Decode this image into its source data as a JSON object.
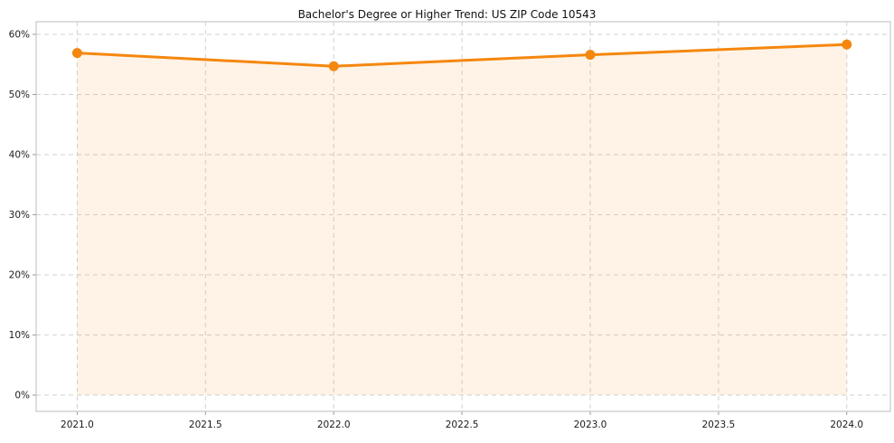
{
  "chart_data": {
    "type": "line",
    "title": "Bachelor's Degree or Higher Trend: US ZIP Code 10543",
    "x": [
      2021,
      2022,
      2023,
      2024
    ],
    "series": [
      {
        "name": "Bachelor's Degree or Higher %",
        "values": [
          56.9,
          54.7,
          56.6,
          58.3
        ]
      }
    ],
    "x_tick_labels": [
      "2021.0",
      "2021.5",
      "2022.0",
      "2022.5",
      "2023.0",
      "2023.5",
      "2024.0"
    ],
    "x_ticks": [
      2021.0,
      2021.5,
      2022.0,
      2022.5,
      2023.0,
      2023.5,
      2024.0
    ],
    "y_tick_labels": [
      "0%",
      "10%",
      "20%",
      "30%",
      "40%",
      "50%",
      "60%"
    ],
    "y_ticks": [
      0,
      10,
      20,
      30,
      40,
      50,
      60
    ],
    "xlabel": "",
    "ylabel": "",
    "xlim": [
      2020.84,
      2024.17
    ],
    "ylim": [
      -2.7,
      62.1
    ],
    "grid": "dashed",
    "legend": "none",
    "line_color": "#f5870e",
    "marker_color": "#f5870e",
    "fill_color": "rgba(245, 135, 14, 0.10)",
    "fill_baseline": 0,
    "marker": "circle"
  }
}
